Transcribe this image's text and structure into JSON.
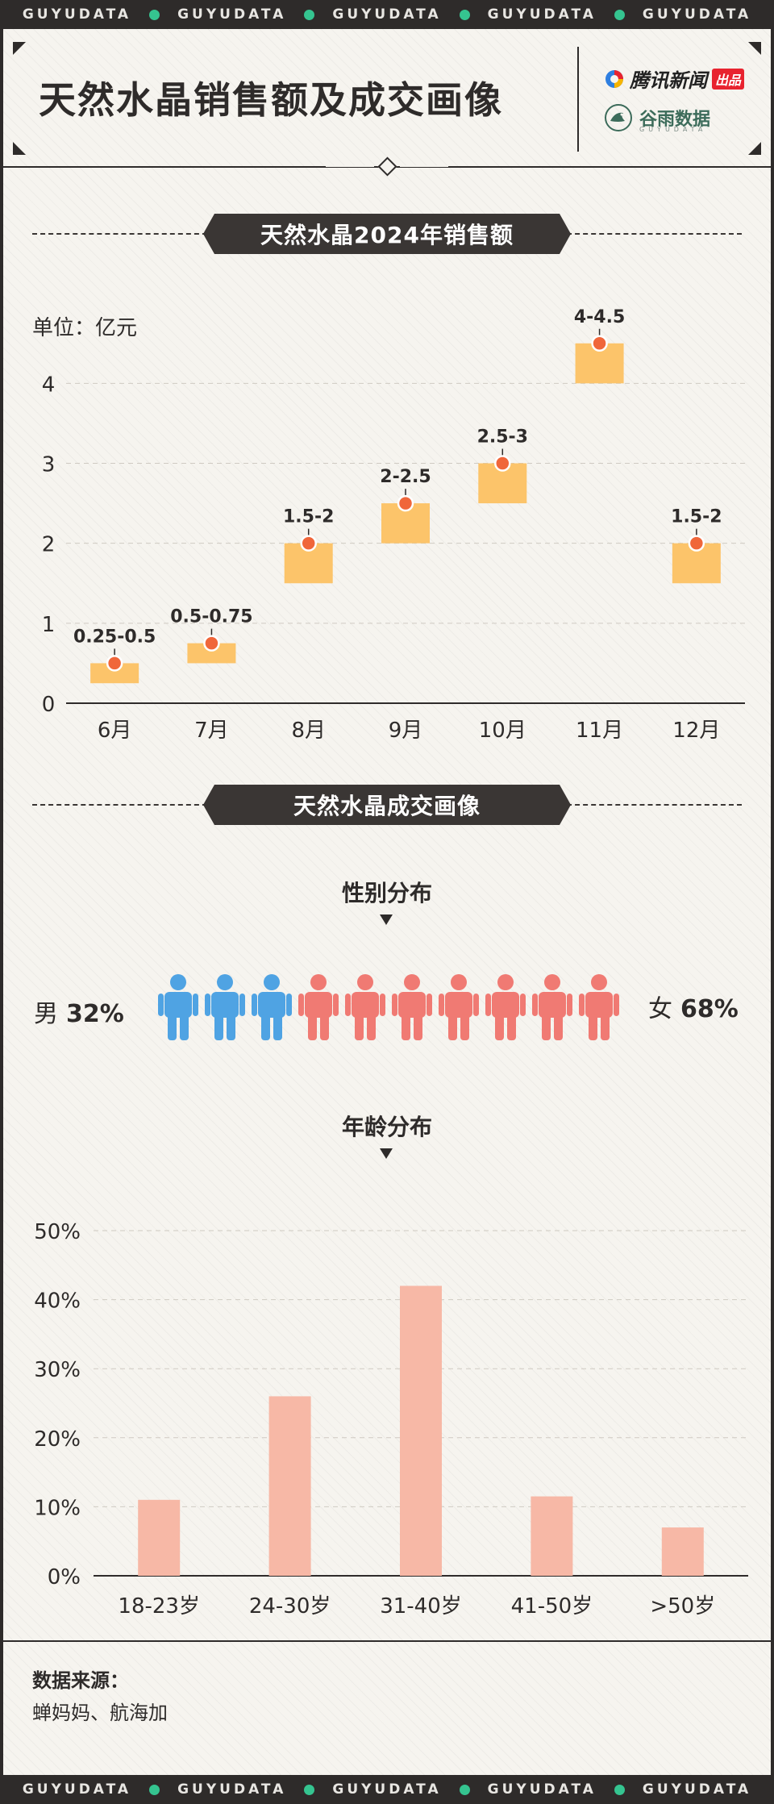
{
  "band": {
    "text": "GUYUDATA"
  },
  "header": {
    "title": "天然水晶销售额及成交画像",
    "logo_tencent": "腾讯新闻",
    "logo_tencent_badge": "出品",
    "logo_guyu": "谷雨数据",
    "logo_guyu_sub": "GUYUDATA"
  },
  "section1": {
    "title": "天然水晶2024年销售额",
    "unit": "单位：亿元"
  },
  "section2": {
    "title": "天然水晶成交画像",
    "gender_title": "性别分布",
    "age_title": "年龄分布"
  },
  "gender": {
    "male_label": "男",
    "male_pct": "32%",
    "female_label": "女",
    "female_pct": "68%",
    "male_color": "#4fa3e3",
    "female_color": "#f07a73",
    "male_icons": 3,
    "female_icons": 7
  },
  "source": {
    "heading": "数据来源：",
    "text": "蝉妈妈、航海加"
  },
  "colors": {
    "range_bar": "#fcc46a",
    "marker": "#f0663a",
    "age_bar": "#f7b8a6",
    "ink": "#2e2b2a"
  },
  "chart_data": [
    {
      "type": "bar",
      "subtype": "range",
      "title": "天然水晶2024年销售额",
      "ylabel": "单位：亿元",
      "categories": [
        "6月",
        "7月",
        "8月",
        "9月",
        "10月",
        "11月",
        "12月"
      ],
      "low": [
        0.25,
        0.5,
        1.5,
        2,
        2.5,
        4,
        1.5
      ],
      "high": [
        0.5,
        0.75,
        2,
        2.5,
        3,
        4.5,
        2
      ],
      "labels": [
        "0.25-0.5",
        "0.5-0.75",
        "1.5-2",
        "2-2.5",
        "2.5-3",
        "4-4.5",
        "1.5-2"
      ],
      "ylim": [
        0,
        4.8
      ],
      "yticks": [
        0,
        1,
        2,
        3,
        4
      ],
      "grid": true
    },
    {
      "type": "bar",
      "title": "年龄分布",
      "categories": [
        "18-23岁",
        "24-30岁",
        "31-40岁",
        "41-50岁",
        ">50岁"
      ],
      "values": [
        11,
        26,
        42,
        11.5,
        7
      ],
      "yticks": [
        "0%",
        "10%",
        "20%",
        "30%",
        "40%",
        "50%"
      ],
      "ylim": [
        0,
        50
      ],
      "grid": true
    }
  ]
}
